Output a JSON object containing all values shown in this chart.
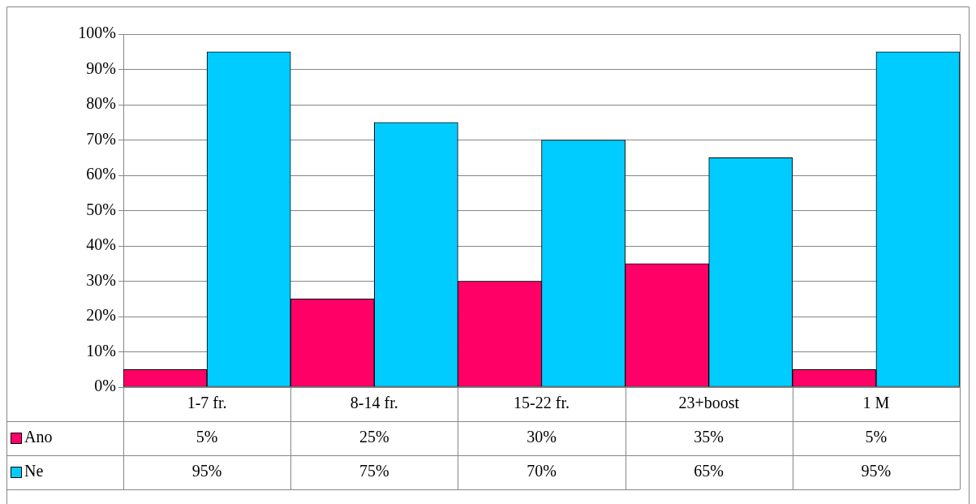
{
  "chart_data": {
    "type": "bar",
    "categories": [
      "1-7 fr.",
      "8-14 fr.",
      "15-22 fr.",
      "23+boost",
      "1 M"
    ],
    "series": [
      {
        "name": "Ano",
        "color": "#ff0066",
        "values": [
          5,
          25,
          30,
          35,
          5
        ],
        "value_labels": [
          "5%",
          "25%",
          "30%",
          "35%",
          "5%"
        ]
      },
      {
        "name": "Ne",
        "color": "#00ccff",
        "values": [
          95,
          75,
          70,
          65,
          95
        ],
        "value_labels": [
          "95%",
          "75%",
          "70%",
          "65%",
          "95%"
        ]
      }
    ],
    "ylim": [
      0,
      100
    ],
    "yticks": [
      {
        "value": 0,
        "label": "0%"
      },
      {
        "value": 10,
        "label": "10%"
      },
      {
        "value": 20,
        "label": "20%"
      },
      {
        "value": 30,
        "label": "30%"
      },
      {
        "value": 40,
        "label": "40%"
      },
      {
        "value": 50,
        "label": "50%"
      },
      {
        "value": 60,
        "label": "60%"
      },
      {
        "value": 70,
        "label": "70%"
      },
      {
        "value": 80,
        "label": "80%"
      },
      {
        "value": 90,
        "label": "90%"
      },
      {
        "value": 100,
        "label": "100%"
      }
    ],
    "grid": "y",
    "legend": "bottom"
  }
}
